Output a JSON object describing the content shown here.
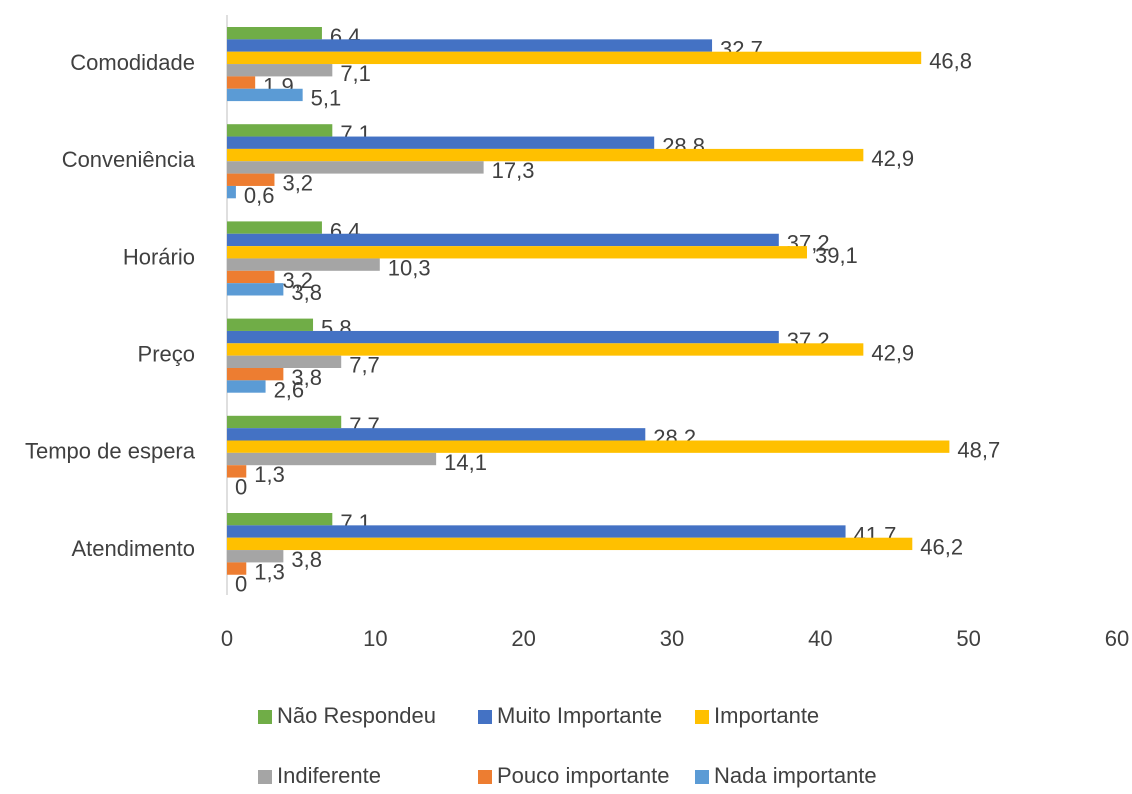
{
  "chart_data": {
    "type": "bar",
    "orientation": "horizontal",
    "categories": [
      "Comodidade",
      "Conveniência",
      "Horário",
      "Preço",
      "Tempo de espera",
      "Atendimento"
    ],
    "series": [
      {
        "name": "Não Respondeu",
        "color": "#70ad47",
        "values": [
          6.4,
          7.1,
          6.4,
          5.8,
          7.7,
          7.1
        ],
        "value_labels": [
          "6,4",
          "7,1",
          "6,4",
          "5,8",
          "7,7",
          "7,1"
        ]
      },
      {
        "name": "Muito Importante",
        "color": "#4472c4",
        "values": [
          32.7,
          28.8,
          37.2,
          37.2,
          28.2,
          41.7
        ],
        "value_labels": [
          "32,7",
          "28,8",
          "37,2",
          "37,2",
          "28,2",
          "41,7"
        ]
      },
      {
        "name": "Importante",
        "color": "#ffc000",
        "values": [
          46.8,
          42.9,
          39.1,
          42.9,
          48.7,
          46.2
        ],
        "value_labels": [
          "46,8",
          "42,9",
          "39,1",
          "42,9",
          "48,7",
          "46,2"
        ]
      },
      {
        "name": "Indiferente",
        "color": "#a5a5a5",
        "values": [
          7.1,
          17.3,
          10.3,
          7.7,
          14.1,
          3.8
        ],
        "value_labels": [
          "7,1",
          "17,3",
          "10,3",
          "7,7",
          "14,1",
          "3,8"
        ]
      },
      {
        "name": "Pouco importante",
        "color": "#ed7d31",
        "values": [
          1.9,
          3.2,
          3.2,
          3.8,
          1.3,
          1.3
        ],
        "value_labels": [
          "1,9",
          "3,2",
          "3,2",
          "3,8",
          "1,3",
          "1,3"
        ]
      },
      {
        "name": "Nada importante",
        "color": "#5b9bd5",
        "values": [
          5.1,
          0.6,
          3.8,
          2.6,
          0,
          0
        ],
        "value_labels": [
          "5,1",
          "0,6",
          "3,8",
          "2,6",
          "0",
          "0"
        ]
      }
    ],
    "xlim": [
      0,
      60
    ],
    "xticks": [
      0,
      10,
      20,
      30,
      40,
      50,
      60
    ],
    "grid": false,
    "legend": "bottom"
  }
}
